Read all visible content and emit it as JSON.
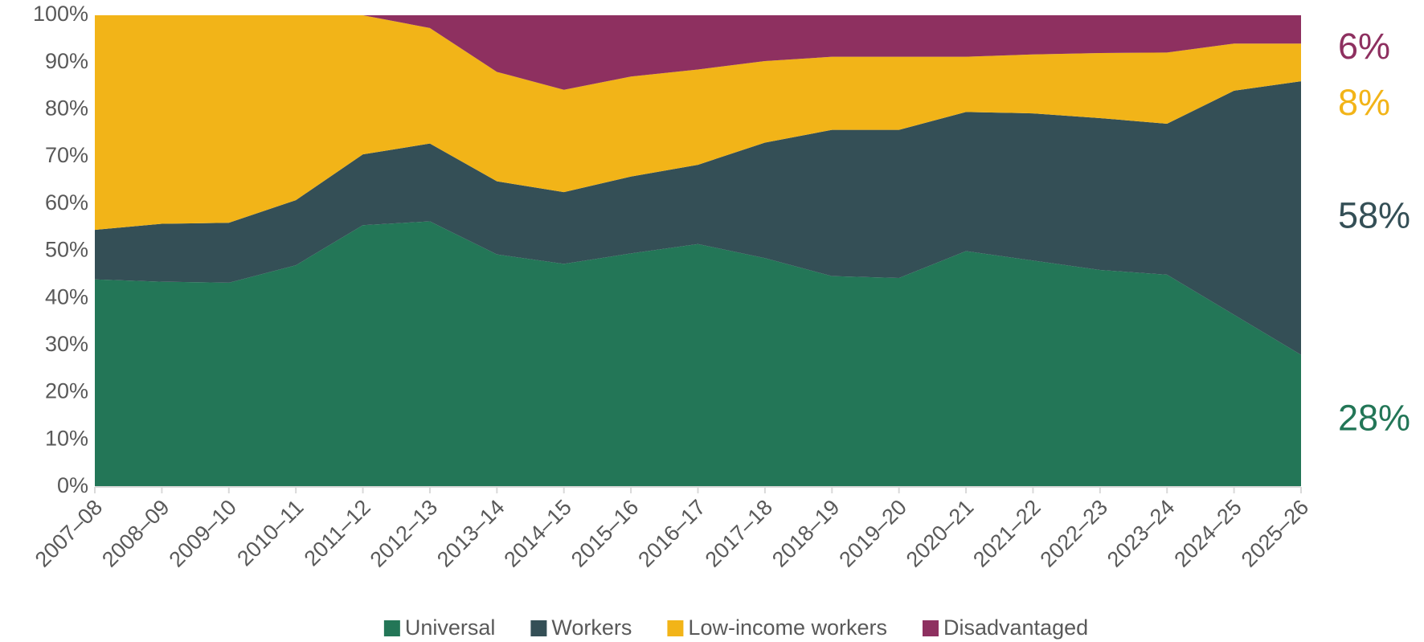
{
  "chart_data": {
    "type": "stacked_area",
    "categories": [
      "2007–08",
      "2008–09",
      "2009–10",
      "2010–11",
      "2011–12",
      "2012–13",
      "2013–14",
      "2014–15",
      "2015–16",
      "2016–17",
      "2017–18",
      "2018–19",
      "2019–20",
      "2020–21",
      "2021–22",
      "2022–23",
      "2023–24",
      "2024–25",
      "2025–26"
    ],
    "series": [
      {
        "name": "Universal",
        "color": "#237657",
        "values": [
          44,
          43.5,
          43.3,
          47,
          55.5,
          56.3,
          49.3,
          47.3,
          49.5,
          51.5,
          48.5,
          44.7,
          44.3,
          50,
          48,
          46,
          45,
          36.5,
          28
        ],
        "value_labels": [
          null,
          null,
          null,
          null,
          null,
          null,
          null,
          null,
          null,
          null,
          null,
          null,
          null,
          null,
          null,
          null,
          null,
          null,
          "28%"
        ]
      },
      {
        "name": "Workers",
        "color": "#344f56",
        "values": [
          10.5,
          12.3,
          12.7,
          13.8,
          15,
          16.5,
          15.5,
          15.2,
          16.3,
          16.8,
          24.5,
          31,
          31.4,
          29.5,
          31.2,
          32.2,
          32,
          47.5,
          58
        ],
        "value_labels": [
          null,
          null,
          null,
          null,
          null,
          null,
          null,
          null,
          null,
          null,
          null,
          null,
          null,
          null,
          null,
          null,
          null,
          null,
          "58%"
        ]
      },
      {
        "name": "Low-income workers",
        "color": "#f2b418",
        "values": [
          45.5,
          44.2,
          44,
          39.2,
          29.5,
          24.5,
          23.2,
          21.7,
          21.2,
          20.2,
          17.3,
          15.5,
          15.5,
          11.7,
          12.5,
          13.8,
          15.1,
          10,
          8
        ],
        "value_labels": [
          null,
          null,
          null,
          null,
          null,
          null,
          null,
          null,
          null,
          null,
          null,
          null,
          null,
          null,
          null,
          null,
          null,
          null,
          "8%"
        ]
      },
      {
        "name": "Disadvantaged",
        "color": "#8e3060",
        "values": [
          0,
          0,
          0,
          0,
          0,
          2.7,
          12,
          15.8,
          13,
          11.5,
          9.7,
          8.8,
          8.8,
          8.8,
          8.3,
          8,
          7.9,
          6,
          6
        ],
        "value_labels": [
          null,
          null,
          null,
          null,
          null,
          null,
          null,
          null,
          null,
          null,
          null,
          null,
          null,
          null,
          null,
          null,
          null,
          null,
          "6%"
        ]
      }
    ],
    "ylim": [
      0,
      100
    ],
    "yticks": [
      {
        "value": 0,
        "label": "0%"
      },
      {
        "value": 10,
        "label": "10%"
      },
      {
        "value": 20,
        "label": "20%"
      },
      {
        "value": 30,
        "label": "30%"
      },
      {
        "value": 40,
        "label": "40%"
      },
      {
        "value": 50,
        "label": "50%"
      },
      {
        "value": 60,
        "label": "60%"
      },
      {
        "value": 70,
        "label": "70%"
      },
      {
        "value": 80,
        "label": "80%"
      },
      {
        "value": 90,
        "label": "90%"
      },
      {
        "value": 100,
        "label": "100%"
      }
    ],
    "legend": "bottom"
  }
}
